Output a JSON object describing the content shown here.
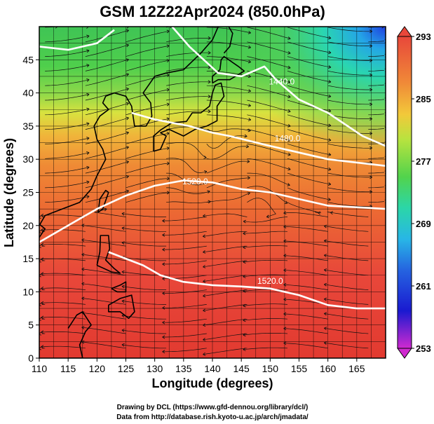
{
  "title": "GSM 12Z22Apr2024 (850.0hPa)",
  "axes": {
    "xlabel": "Longitude (degrees)",
    "ylabel": "Latitude  (degrees)",
    "xlim": [
      110,
      170
    ],
    "ylim": [
      0,
      50
    ],
    "xticks": [
      "110",
      "115",
      "120",
      "125",
      "130",
      "135",
      "140",
      "145",
      "150",
      "155",
      "160",
      "165"
    ],
    "yticks": [
      "0",
      "5",
      "10",
      "15",
      "20",
      "25",
      "30",
      "35",
      "40",
      "45"
    ]
  },
  "colorbar": {
    "ticks": [
      "293",
      "285",
      "277",
      "269",
      "261",
      "253"
    ],
    "colors": [
      "#e8473a",
      "#f2a13b",
      "#d7e53c",
      "#5ed54a",
      "#2bd6a8",
      "#2aa6e8",
      "#1f4fe0",
      "#1a1ad0",
      "#c02ad0"
    ]
  },
  "contours": [
    {
      "label": "1440.0"
    },
    {
      "label": "1480.0"
    },
    {
      "label": "1520.0"
    },
    {
      "label": "1520.0"
    }
  ],
  "credits": {
    "line1": "Drawing by DCL (https://www.gfd-dennou.org/library/dcl/)",
    "line2": "Data from http://database.rish.kyoto-u.ac.jp/arch/jmadata/"
  }
}
